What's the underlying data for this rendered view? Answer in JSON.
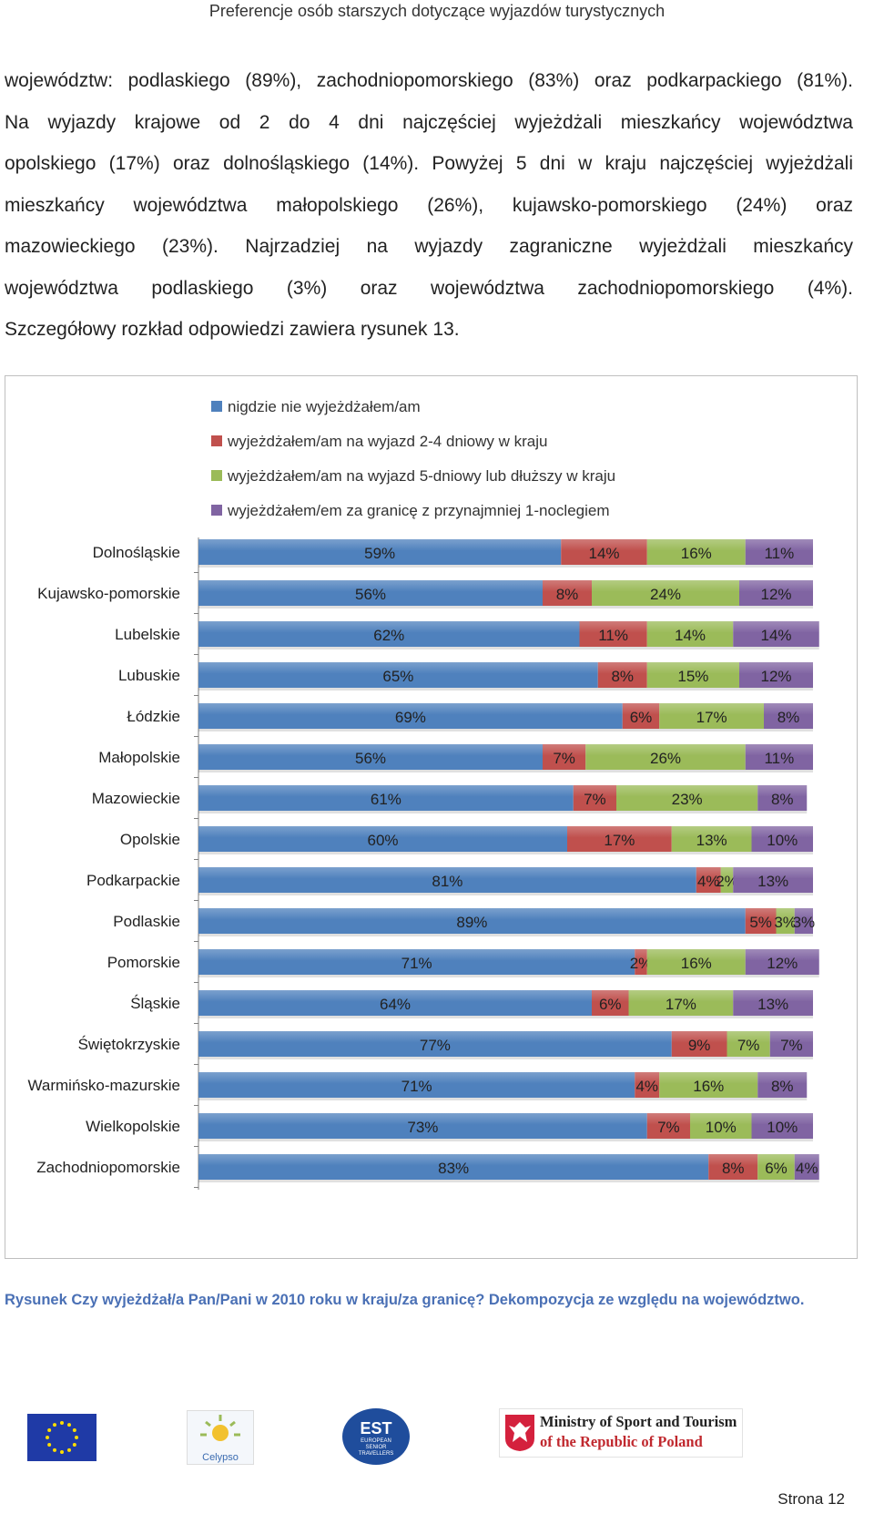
{
  "header": {
    "title": "Preferencje osób starszych dotyczące wyjazdów turystycznych"
  },
  "paragraph": {
    "lines": [
      "województw: podlaskiego (89%), zachodniopomorskiego (83%) oraz podkarpackiego (81%).",
      "Na wyjazdy krajowe od 2 do 4 dni najczęściej wyjeżdżali mieszkańcy województwa",
      "opolskiego (17%) oraz dolnośląskiego (14%). Powyżej 5 dni w kraju najczęściej wyjeżdżali",
      "mieszkańcy województwa małopolskiego (26%), kujawsko-pomorskiego (24%) oraz",
      "mazowieckiego (23%). Najrzadziej na wyjazdy zagraniczne wyjeżdżali mieszkańcy",
      "województwa podlaskiego (3%) oraz województwa zachodniopomorskiego (4%).",
      "Szczegółowy rozkład odpowiedzi zawiera rysunek 13."
    ]
  },
  "legend": {
    "items": [
      {
        "label": "nigdzie nie wyjeżdżałem/am",
        "color": "#4f81bd"
      },
      {
        "label": "wyjeżdżałem/am na wyjazd 2-4 dniowy w kraju",
        "color": "#c0504d"
      },
      {
        "label": "wyjeżdżałem/am na wyjazd 5-dniowy lub dłuższy w kraju",
        "color": "#9bbb59"
      },
      {
        "label": "wyjeżdżałem/em za granicę z przynajmniej 1-noclegiem",
        "color": "#8064a2"
      }
    ]
  },
  "chart_data": {
    "type": "bar",
    "orientation": "horizontal",
    "stacked": true,
    "title": "",
    "xlabel": "",
    "ylabel": "",
    "xlim": [
      0,
      100
    ],
    "categories": [
      "Dolnośląskie",
      "Kujawsko-pomorskie",
      "Lubelskie",
      "Lubuskie",
      "Łódzkie",
      "Małopolskie",
      "Mazowieckie",
      "Opolskie",
      "Podkarpackie",
      "Podlaskie",
      "Pomorskie",
      "Śląskie",
      "Świętokrzyskie",
      "Warmińsko-mazurskie",
      "Wielkopolskie",
      "Zachodniopomorskie"
    ],
    "series": [
      {
        "name": "nigdzie nie wyjeżdżałem/am",
        "color": "#4f81bd",
        "values": [
          59,
          56,
          62,
          65,
          69,
          56,
          61,
          60,
          81,
          89,
          71,
          64,
          77,
          71,
          73,
          83
        ]
      },
      {
        "name": "wyjeżdżałem/am na wyjazd 2-4 dniowy w kraju",
        "color": "#c0504d",
        "values": [
          14,
          8,
          11,
          8,
          6,
          7,
          7,
          17,
          4,
          5,
          2,
          6,
          9,
          4,
          7,
          8
        ]
      },
      {
        "name": "wyjeżdżałem/am na wyjazd 5-dniowy lub dłuższy w kraju",
        "color": "#9bbb59",
        "values": [
          16,
          24,
          14,
          15,
          17,
          26,
          23,
          13,
          2,
          3,
          16,
          17,
          7,
          16,
          10,
          6
        ]
      },
      {
        "name": "wyjeżdżałem/em za granicę z przynajmniej 1-noclegiem",
        "color": "#8064a2",
        "values": [
          11,
          12,
          14,
          12,
          8,
          11,
          8,
          10,
          13,
          3,
          12,
          13,
          7,
          8,
          10,
          4
        ]
      }
    ],
    "data_labels": "percent",
    "legend_position": "top"
  },
  "caption": {
    "text": "Rysunek  Czy wyjeżdżał/a Pan/Pani w 2010 roku w kraju/za granicę? Dekompozycja ze względu na województwo."
  },
  "logos": {
    "celypso_label": "Celypso",
    "est_label": "EST",
    "est_subtitle": "EUROPEAN SENIOR TRAVELLERS",
    "ministry_line1": "Ministry of Sport and Tourism",
    "ministry_line2": "of the Republic of Poland"
  },
  "footer": {
    "page_label": "Strona 12"
  }
}
